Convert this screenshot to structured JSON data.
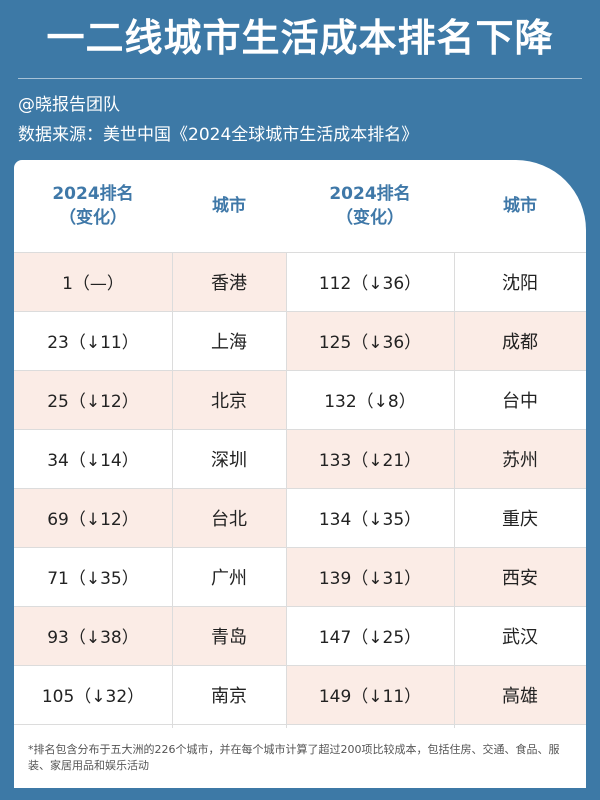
{
  "title": "一二线城市生活成本排名下降",
  "author": "@晓报告团队",
  "source": "数据来源：美世中国《2024全球城市生活成本排名》",
  "table": {
    "headers": {
      "rank_line1": "2024排名",
      "rank_line2": "（变化）",
      "city": "城市"
    },
    "left": [
      {
        "rank": "1（—）",
        "city": "香港"
      },
      {
        "rank": "23（↓11）",
        "city": "上海"
      },
      {
        "rank": "25（↓12）",
        "city": "北京"
      },
      {
        "rank": "34（↓14）",
        "city": "深圳"
      },
      {
        "rank": "69（↓12）",
        "city": "台北"
      },
      {
        "rank": "71（↓35）",
        "city": "广州"
      },
      {
        "rank": "93（↓38）",
        "city": "青岛"
      },
      {
        "rank": "105（↓32）",
        "city": "南京"
      }
    ],
    "right": [
      {
        "rank": "112（↓36）",
        "city": "沈阳"
      },
      {
        "rank": "125（↓36）",
        "city": "成都"
      },
      {
        "rank": "132（↓8）",
        "city": "台中"
      },
      {
        "rank": "133（↓21）",
        "city": "苏州"
      },
      {
        "rank": "134（↓35）",
        "city": "重庆"
      },
      {
        "rank": "139（↓31）",
        "city": "西安"
      },
      {
        "rank": "147（↓25）",
        "city": "武汉"
      },
      {
        "rank": "149（↓11）",
        "city": "高雄"
      }
    ]
  },
  "footnote": "*排名包含分布于五大洲的226个城市，并在每个城市计算了超过200项比较成本，包括住房、交通、食品、服装、家居用品和娱乐活动",
  "colors": {
    "background": "#3d79a6",
    "header_text": "#3f78a8",
    "row_highlight": "#fbece6"
  }
}
